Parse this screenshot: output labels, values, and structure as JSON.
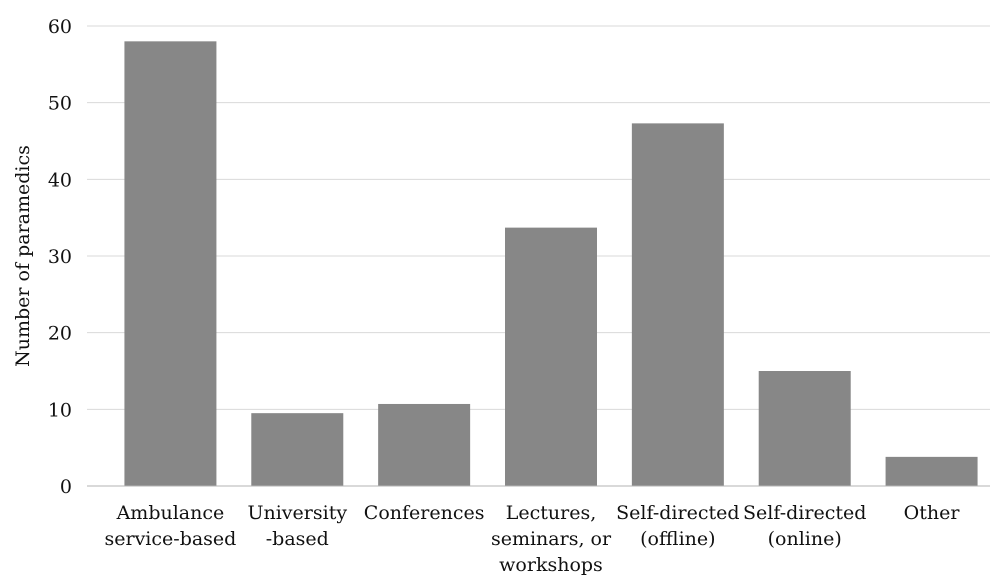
{
  "chart_data": {
    "type": "bar",
    "title": "",
    "xlabel": "",
    "ylabel": "Number of paramedics",
    "ylim": [
      0,
      60
    ],
    "yticks": [
      0,
      10,
      20,
      30,
      40,
      50,
      60
    ],
    "grid": true,
    "bar_color": "#878787",
    "grid_color": "#d9d9d9",
    "categories": [
      [
        "Ambulance",
        "service-based"
      ],
      [
        "University",
        "-based"
      ],
      [
        "Conferences"
      ],
      [
        "Lectures,",
        "seminars, or",
        "workshops"
      ],
      [
        "Self-directed",
        "(offline)"
      ],
      [
        "Self-directed",
        "(online)"
      ],
      [
        "Other"
      ]
    ],
    "values": [
      58,
      9.5,
      10.7,
      33.7,
      47.3,
      15,
      3.8
    ]
  }
}
